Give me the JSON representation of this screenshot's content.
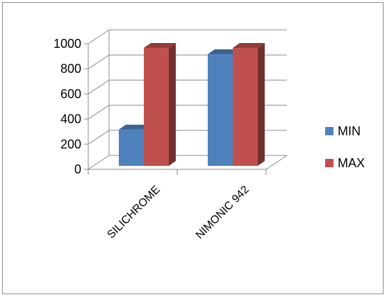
{
  "chart_data": {
    "type": "bar",
    "style": "3d-clustered-column",
    "categories": [
      "SILICHROME",
      "NIMONIC 942"
    ],
    "series": [
      {
        "name": "MIN",
        "color": "#4f81bd",
        "values": [
          300,
          900
        ]
      },
      {
        "name": "MAX",
        "color": "#c0504d",
        "values": [
          950,
          950
        ]
      }
    ],
    "y_ticks": [
      0,
      200,
      400,
      600,
      800,
      1000
    ],
    "ylim": [
      0,
      1000
    ],
    "grid": true,
    "legend_position": "right"
  }
}
